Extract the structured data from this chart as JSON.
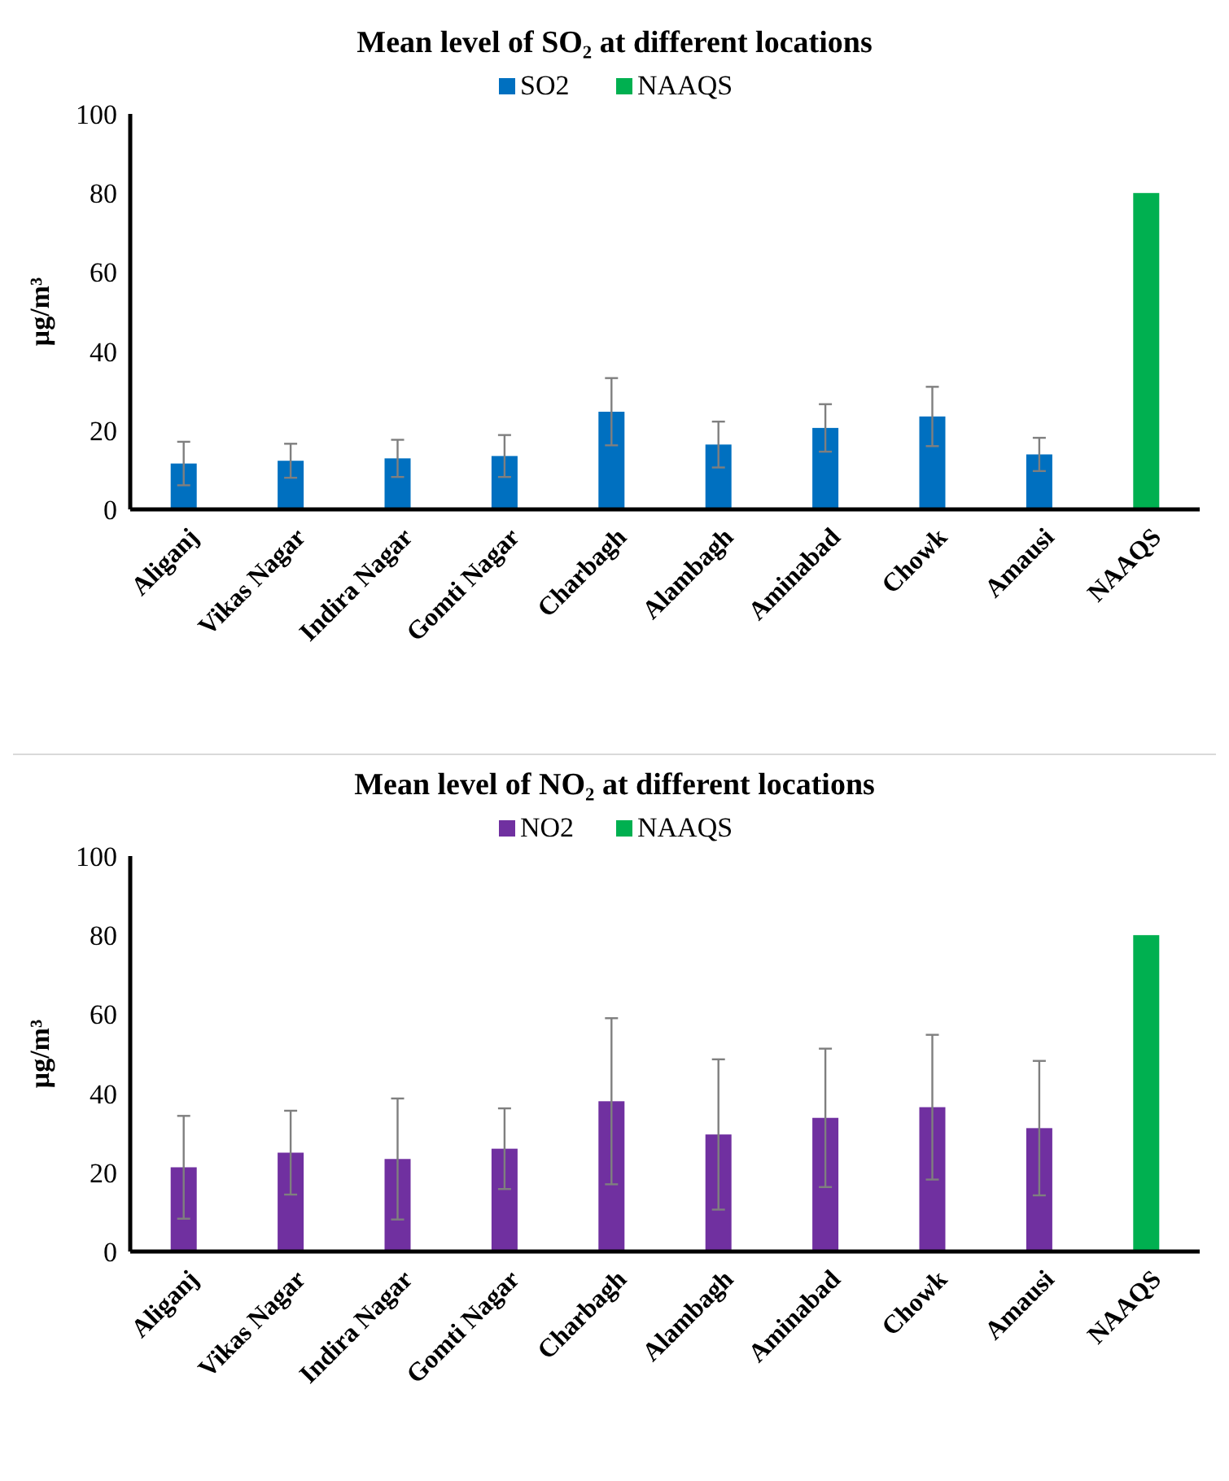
{
  "chart_data": [
    {
      "type": "bar",
      "title": "Mean level of SO₂ at different locations",
      "ylabel": "μg/m³",
      "categories": [
        "Aliganj",
        "Vikas Nagar",
        "Indira Nagar",
        "Gomti Nagar",
        "Charbagh",
        "Alambagh",
        "Aminabad",
        "Chowk",
        "Amausi",
        "NAAQS"
      ],
      "series": [
        {
          "name": "SO2",
          "color": "#0070c0",
          "values": [
            11.6,
            12.3,
            12.9,
            13.5,
            24.7,
            16.4,
            20.6,
            23.5,
            13.9,
            null
          ],
          "errors": [
            5.5,
            4.3,
            4.7,
            5.3,
            8.5,
            5.8,
            6,
            7.5,
            4.2,
            null
          ]
        },
        {
          "name": "NAAQS",
          "color": "#00b050",
          "values": [
            null,
            null,
            null,
            null,
            null,
            null,
            null,
            null,
            null,
            80
          ]
        }
      ],
      "ylim": [
        0,
        100
      ],
      "yticks": [
        0,
        20,
        40,
        60,
        80,
        100
      ],
      "grid": false,
      "legend": "top"
    },
    {
      "type": "bar",
      "title": "Mean level of NO₂ at different locations",
      "ylabel": "μg/m³",
      "categories": [
        "Aliganj",
        "Vikas Nagar",
        "Indira Nagar",
        "Gomti Nagar",
        "Charbagh",
        "Alambagh",
        "Aminabad",
        "Chowk",
        "Amausi",
        "NAAQS"
      ],
      "series": [
        {
          "name": "NO2",
          "color": "#7030a0",
          "values": [
            21.3,
            25,
            23.4,
            26,
            38,
            29.6,
            33.8,
            36.5,
            31.2,
            null
          ],
          "errors": [
            13,
            10.6,
            15.3,
            10.2,
            21,
            19,
            17.5,
            18.3,
            17,
            null
          ]
        },
        {
          "name": "NAAQS",
          "color": "#00b050",
          "values": [
            null,
            null,
            null,
            null,
            null,
            null,
            null,
            null,
            null,
            80
          ]
        }
      ],
      "ylim": [
        0,
        100
      ],
      "yticks": [
        0,
        20,
        40,
        60,
        80,
        100
      ],
      "grid": false,
      "legend": "top"
    }
  ]
}
